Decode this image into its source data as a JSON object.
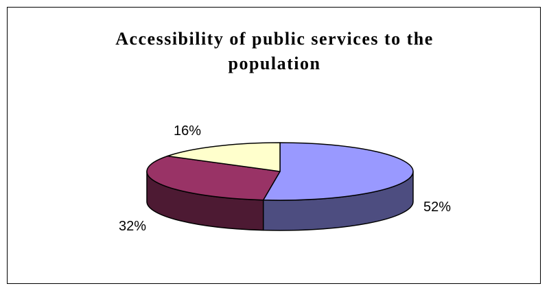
{
  "chart_data": {
    "type": "pie",
    "title_lines": [
      "Accessibility of public services to the",
      "population"
    ],
    "slices": [
      {
        "label": "52%",
        "value": 52,
        "color": "#9999ff",
        "side_color": "#4d4d80"
      },
      {
        "label": "32%",
        "value": 32,
        "color": "#993366",
        "side_color": "#4d1a33"
      },
      {
        "label": "16%",
        "value": 16,
        "color": "#ffffcc",
        "side_color": "#808066"
      }
    ],
    "start_angle_deg": 0,
    "direction": "clockwise",
    "three_d": true,
    "legend": "none"
  }
}
